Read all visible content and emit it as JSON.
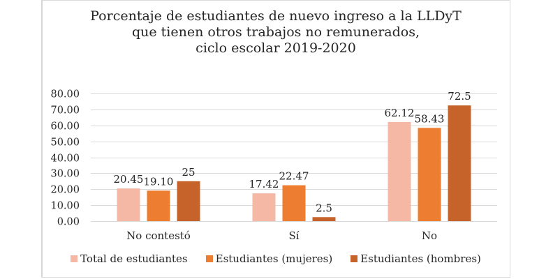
{
  "chart_data": {
    "type": "bar",
    "title_lines": [
      "Porcentaje de estudiantes de nuevo ingreso a la LLDyT",
      "que tienen otros trabajos no remunerados,",
      "ciclo escolar 2019-2020"
    ],
    "categories": [
      "No contestó",
      "Sí",
      "No"
    ],
    "series": [
      {
        "name": "Total de estudiantes",
        "color": "#f4b8a4",
        "values": [
          20.45,
          17.42,
          62.12
        ],
        "labels": [
          "20.45",
          "17.42",
          "62.12"
        ]
      },
      {
        "name": "Estudiantes (mujeres)",
        "color": "#ed7d31",
        "values": [
          19.1,
          22.47,
          58.43
        ],
        "labels": [
          "19.10",
          "22.47",
          "58.43"
        ]
      },
      {
        "name": "Estudiantes (hombres)",
        "color": "#c5632a",
        "values": [
          25,
          2.5,
          72.5
        ],
        "labels": [
          "25",
          "2.5",
          "72.5"
        ]
      }
    ],
    "xlabel": "",
    "ylabel": "",
    "ylim": [
      0,
      80
    ],
    "yticks": [
      0,
      10,
      20,
      30,
      40,
      50,
      60,
      70,
      80
    ],
    "ytick_labels": [
      "0.00",
      "10.00",
      "20.00",
      "30.00",
      "40.00",
      "50.00",
      "60.00",
      "70.00",
      "80.00"
    ],
    "grid": true,
    "legend_position": "bottom"
  }
}
